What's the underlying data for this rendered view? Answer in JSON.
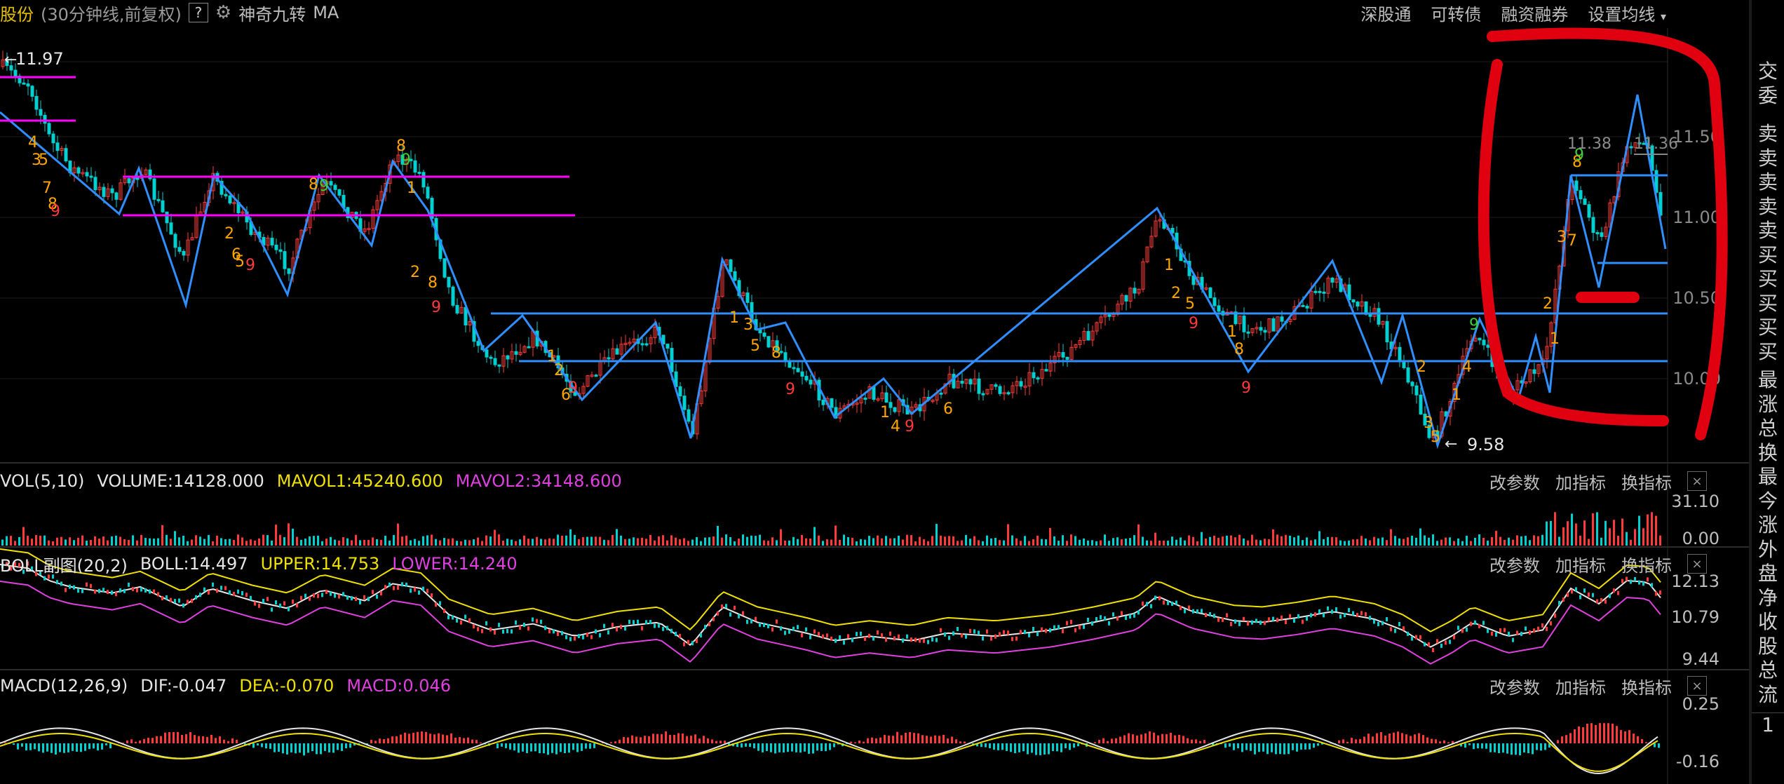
{
  "topbar": {
    "stock_name": "股份",
    "period": "(30分钟线,前复权)",
    "help": "?",
    "indicator_name": "神奇九转",
    "indicator_ma": "MA",
    "menu": [
      "深股通",
      "可转债",
      "融资融券",
      "设置均线"
    ]
  },
  "main": {
    "price_high_label": "11.97",
    "price_low_label": "9.58",
    "price_top_right_label": "11.38",
    "price_top_right_label2": "11.36",
    "y_axis": [
      "11.50",
      "11.00",
      "10.50",
      "10.00"
    ]
  },
  "volume": {
    "name": "VOL(5,10)",
    "volume": "VOLUME:14128.000",
    "mavol1": "MAVOL1:45240.600",
    "mavol2": "MAVOL2:34148.600",
    "y_axis": [
      "31.10",
      "0.00"
    ]
  },
  "boll": {
    "name": "BOLL副图(20,2)",
    "boll": "BOLL:14.497",
    "upper": "UPPER:14.753",
    "lower": "LOWER:14.240",
    "y_axis": [
      "12.13",
      "10.79",
      "9.44"
    ]
  },
  "macd": {
    "name": "MACD(12,26,9)",
    "dif": "DIF:-0.047",
    "dea": "DEA:-0.070",
    "macd": "MACD:0.046",
    "y_axis": [
      "0.25",
      "-0.16"
    ]
  },
  "tools": {
    "modify": "改参数",
    "add": "加指标",
    "switch": "换指标",
    "close": "×"
  },
  "sidebar": [
    "交",
    "委",
    "卖",
    "卖",
    "卖",
    "卖",
    "卖",
    "买",
    "买",
    "买",
    "买",
    "买",
    "最",
    "涨",
    "总",
    "换",
    "最",
    "今",
    "涨",
    "外",
    "盘",
    "净",
    "收",
    "股",
    "总",
    "流"
  ],
  "sidebar_bottom": "1",
  "colors": {
    "up": "#ff3a3a",
    "down": "#00d0d0",
    "zigzag": "#2f8fff",
    "level": "#ff00ff",
    "mark": "#e00010",
    "count_orange": "#ffa500",
    "count_green": "#3ad23a"
  }
}
